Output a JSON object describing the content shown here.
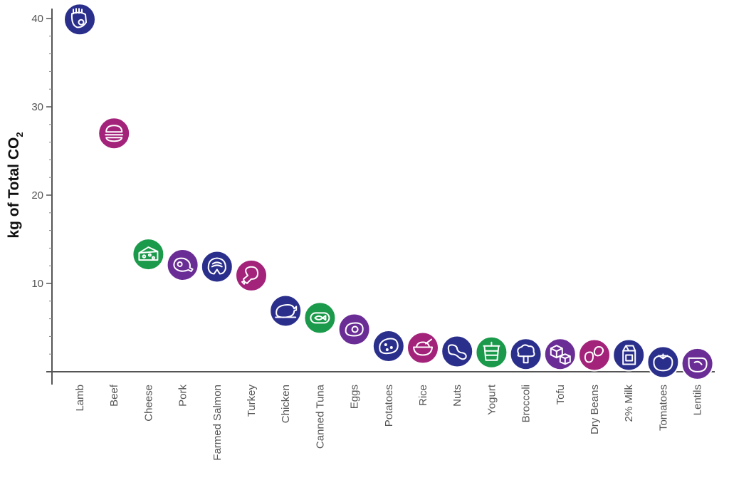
{
  "chart_data": {
    "type": "scatter",
    "ylabel": "kg of Total CO",
    "ylabel_subscript": "2",
    "ylim": [
      0,
      40
    ],
    "yticks": [
      10,
      20,
      30,
      40
    ],
    "grid": false,
    "colors": {
      "navy": "#2b2f8c",
      "magenta": "#a3237a",
      "green": "#1a9a4a",
      "purple": "#6a2d95"
    },
    "categories": [
      "Lamb",
      "Beef",
      "Cheese",
      "Pork",
      "Farmed Salmon",
      "Turkey",
      "Chicken",
      "Canned Tuna",
      "Eggs",
      "Potatoes",
      "Rice",
      "Nuts",
      "Yogurt",
      "Broccoli",
      "Tofu",
      "Dry Beans",
      "2% Milk",
      "Tomatoes",
      "Lentils"
    ],
    "values": [
      39.9,
      27.0,
      13.3,
      12.1,
      11.9,
      10.9,
      6.9,
      6.1,
      4.8,
      2.9,
      2.7,
      2.3,
      2.2,
      2.0,
      2.0,
      1.9,
      1.9,
      1.1,
      0.9
    ],
    "point_colors": [
      "navy",
      "magenta",
      "green",
      "purple",
      "navy",
      "magenta",
      "navy",
      "green",
      "purple",
      "navy",
      "magenta",
      "navy",
      "green",
      "navy",
      "purple",
      "magenta",
      "navy",
      "navy",
      "purple"
    ],
    "icons": [
      "lamb-icon",
      "burger-icon",
      "cheese-icon",
      "ham-icon",
      "salmon-steak-icon",
      "drumstick-icon",
      "roast-chicken-icon",
      "tuna-can-icon",
      "egg-icon",
      "potato-icon",
      "rice-bowl-icon",
      "peanut-icon",
      "yogurt-cup-icon",
      "broccoli-icon",
      "tofu-cubes-icon",
      "beans-icon",
      "milk-carton-icon",
      "tomato-icon",
      "lentils-icon"
    ]
  }
}
